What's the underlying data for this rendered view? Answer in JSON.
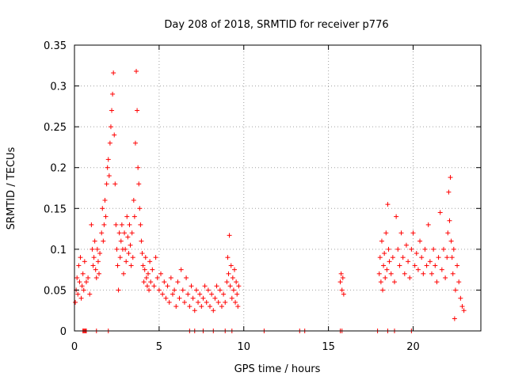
{
  "chart_data": {
    "type": "scatter",
    "title": "Day 208 of 2018, SRMTID for receiver p776",
    "xlabel": "GPS time / hours",
    "ylabel": "SRMTID / TECUs",
    "xlim": [
      0,
      24
    ],
    "ylim": [
      0,
      0.35
    ],
    "grid": true,
    "marker": "+",
    "series_color": "#ff0000",
    "x_ticks": [
      0,
      5,
      10,
      15,
      20
    ],
    "x_tick_labels": [
      "0",
      "5",
      "10",
      "15",
      "20"
    ],
    "y_ticks": [
      0,
      0.05,
      0.1,
      0.15,
      0.2,
      0.25,
      0.3,
      0.35
    ],
    "y_tick_labels": [
      "0",
      "0.05",
      "0.1",
      "0.15",
      "0.2",
      "0.25",
      "0.3",
      "0.35"
    ],
    "series": [
      {
        "name": "SRMTID",
        "points": [
          [
            0.05,
            0.035
          ],
          [
            0.1,
            0.05
          ],
          [
            0.15,
            0.065
          ],
          [
            0.2,
            0.045
          ],
          [
            0.25,
            0.08
          ],
          [
            0.3,
            0.06
          ],
          [
            0.35,
            0.09
          ],
          [
            0.4,
            0.04
          ],
          [
            0.45,
            0.055
          ],
          [
            0.5,
            0.07
          ],
          [
            0.55,
            0.05
          ],
          [
            0.6,
            0.085
          ],
          [
            0.7,
            0.06
          ],
          [
            0.8,
            0.065
          ],
          [
            0.9,
            0.045
          ],
          [
            1.0,
            0.13
          ],
          [
            1.05,
            0.1
          ],
          [
            1.1,
            0.08
          ],
          [
            1.15,
            0.09
          ],
          [
            1.2,
            0.11
          ],
          [
            1.25,
            0.075
          ],
          [
            1.3,
            0.065
          ],
          [
            1.35,
            0.1
          ],
          [
            1.4,
            0.085
          ],
          [
            1.45,
            0.07
          ],
          [
            1.5,
            0.095
          ],
          [
            1.6,
            0.12
          ],
          [
            1.65,
            0.15
          ],
          [
            1.7,
            0.11
          ],
          [
            1.75,
            0.13
          ],
          [
            1.8,
            0.16
          ],
          [
            1.85,
            0.14
          ],
          [
            1.9,
            0.18
          ],
          [
            1.95,
            0.2
          ],
          [
            2.0,
            0.21
          ],
          [
            2.05,
            0.19
          ],
          [
            2.1,
            0.23
          ],
          [
            2.15,
            0.25
          ],
          [
            2.2,
            0.27
          ],
          [
            2.25,
            0.29
          ],
          [
            2.3,
            0.316
          ],
          [
            2.35,
            0.24
          ],
          [
            2.4,
            0.18
          ],
          [
            2.45,
            0.13
          ],
          [
            2.5,
            0.1
          ],
          [
            2.55,
            0.08
          ],
          [
            2.6,
            0.05
          ],
          [
            2.65,
            0.12
          ],
          [
            2.7,
            0.09
          ],
          [
            2.75,
            0.11
          ],
          [
            2.8,
            0.13
          ],
          [
            2.85,
            0.1
          ],
          [
            2.9,
            0.07
          ],
          [
            2.95,
            0.12
          ],
          [
            3.0,
            0.1
          ],
          [
            3.05,
            0.085
          ],
          [
            3.1,
            0.14
          ],
          [
            3.15,
            0.115
          ],
          [
            3.2,
            0.095
          ],
          [
            3.25,
            0.13
          ],
          [
            3.3,
            0.105
          ],
          [
            3.35,
            0.08
          ],
          [
            3.4,
            0.12
          ],
          [
            3.45,
            0.09
          ],
          [
            3.5,
            0.16
          ],
          [
            3.55,
            0.14
          ],
          [
            3.6,
            0.23
          ],
          [
            3.65,
            0.318
          ],
          [
            3.7,
            0.27
          ],
          [
            3.75,
            0.2
          ],
          [
            3.8,
            0.18
          ],
          [
            3.85,
            0.15
          ],
          [
            3.9,
            0.13
          ],
          [
            3.95,
            0.11
          ],
          [
            4.0,
            0.095
          ],
          [
            4.05,
            0.08
          ],
          [
            4.1,
            0.06
          ],
          [
            4.15,
            0.075
          ],
          [
            4.2,
            0.09
          ],
          [
            4.25,
            0.065
          ],
          [
            4.3,
            0.055
          ],
          [
            4.35,
            0.07
          ],
          [
            4.4,
            0.05
          ],
          [
            4.45,
            0.085
          ],
          [
            4.5,
            0.06
          ],
          [
            4.6,
            0.075
          ],
          [
            4.7,
            0.055
          ],
          [
            4.8,
            0.09
          ],
          [
            4.9,
            0.065
          ],
          [
            5.0,
            0.05
          ],
          [
            5.1,
            0.07
          ],
          [
            5.2,
            0.045
          ],
          [
            5.3,
            0.06
          ],
          [
            5.4,
            0.04
          ],
          [
            5.5,
            0.055
          ],
          [
            5.6,
            0.035
          ],
          [
            5.7,
            0.065
          ],
          [
            5.8,
            0.045
          ],
          [
            5.9,
            0.05
          ],
          [
            6.0,
            0.03
          ],
          [
            6.1,
            0.06
          ],
          [
            6.2,
            0.04
          ],
          [
            6.3,
            0.075
          ],
          [
            6.4,
            0.05
          ],
          [
            6.5,
            0.035
          ],
          [
            6.6,
            0.065
          ],
          [
            6.7,
            0.045
          ],
          [
            6.8,
            0.03
          ],
          [
            6.9,
            0.055
          ],
          [
            7.0,
            0.04
          ],
          [
            7.1,
            0.025
          ],
          [
            7.2,
            0.05
          ],
          [
            7.3,
            0.035
          ],
          [
            7.4,
            0.045
          ],
          [
            7.5,
            0.03
          ],
          [
            7.6,
            0.04
          ],
          [
            7.7,
            0.055
          ],
          [
            7.8,
            0.035
          ],
          [
            7.9,
            0.05
          ],
          [
            8.0,
            0.03
          ],
          [
            8.1,
            0.045
          ],
          [
            8.2,
            0.025
          ],
          [
            8.3,
            0.04
          ],
          [
            8.4,
            0.055
          ],
          [
            8.5,
            0.035
          ],
          [
            8.6,
            0.05
          ],
          [
            8.7,
            0.03
          ],
          [
            8.8,
            0.045
          ],
          [
            8.9,
            0.035
          ],
          [
            9.0,
            0.06
          ],
          [
            9.05,
            0.09
          ],
          [
            9.1,
            0.07
          ],
          [
            9.15,
            0.117
          ],
          [
            9.2,
            0.055
          ],
          [
            9.25,
            0.08
          ],
          [
            9.3,
            0.04
          ],
          [
            9.35,
            0.065
          ],
          [
            9.4,
            0.05
          ],
          [
            9.45,
            0.075
          ],
          [
            9.5,
            0.035
          ],
          [
            9.55,
            0.06
          ],
          [
            9.6,
            0.045
          ],
          [
            9.65,
            0.03
          ],
          [
            9.7,
            0.055
          ],
          [
            15.7,
            0.06
          ],
          [
            15.75,
            0.07
          ],
          [
            15.8,
            0.05
          ],
          [
            15.85,
            0.065
          ],
          [
            15.9,
            0.045
          ],
          [
            18.0,
            0.07
          ],
          [
            18.05,
            0.09
          ],
          [
            18.1,
            0.06
          ],
          [
            18.15,
            0.11
          ],
          [
            18.2,
            0.05
          ],
          [
            18.25,
            0.08
          ],
          [
            18.3,
            0.095
          ],
          [
            18.35,
            0.065
          ],
          [
            18.4,
            0.12
          ],
          [
            18.45,
            0.075
          ],
          [
            18.5,
            0.155
          ],
          [
            18.55,
            0.1
          ],
          [
            18.6,
            0.085
          ],
          [
            18.7,
            0.07
          ],
          [
            18.8,
            0.09
          ],
          [
            18.9,
            0.06
          ],
          [
            19.0,
            0.14
          ],
          [
            19.1,
            0.1
          ],
          [
            19.2,
            0.08
          ],
          [
            19.3,
            0.12
          ],
          [
            19.4,
            0.09
          ],
          [
            19.5,
            0.07
          ],
          [
            19.6,
            0.105
          ],
          [
            19.7,
            0.085
          ],
          [
            19.8,
            0.065
          ],
          [
            19.9,
            0.1
          ],
          [
            20.0,
            0.12
          ],
          [
            20.1,
            0.08
          ],
          [
            20.2,
            0.095
          ],
          [
            20.3,
            0.075
          ],
          [
            20.4,
            0.11
          ],
          [
            20.5,
            0.09
          ],
          [
            20.6,
            0.07
          ],
          [
            20.7,
            0.1
          ],
          [
            20.8,
            0.08
          ],
          [
            20.9,
            0.13
          ],
          [
            21.0,
            0.085
          ],
          [
            21.1,
            0.07
          ],
          [
            21.2,
            0.1
          ],
          [
            21.3,
            0.08
          ],
          [
            21.4,
            0.06
          ],
          [
            21.5,
            0.09
          ],
          [
            21.6,
            0.145
          ],
          [
            21.7,
            0.075
          ],
          [
            21.8,
            0.1
          ],
          [
            21.9,
            0.065
          ],
          [
            22.0,
            0.09
          ],
          [
            22.05,
            0.12
          ],
          [
            22.1,
            0.17
          ],
          [
            22.15,
            0.135
          ],
          [
            22.2,
            0.188
          ],
          [
            22.25,
            0.11
          ],
          [
            22.3,
            0.09
          ],
          [
            22.35,
            0.07
          ],
          [
            22.4,
            0.1
          ],
          [
            22.45,
            0.015
          ],
          [
            22.5,
            0.05
          ],
          [
            22.6,
            0.08
          ],
          [
            22.7,
            0.06
          ],
          [
            22.8,
            0.04
          ],
          [
            22.9,
            0.03
          ],
          [
            23.0,
            0.025
          ]
        ],
        "zero_points_x": [
          0.5,
          0.55,
          0.6,
          0.65,
          0.7,
          1.3,
          2.0,
          6.8,
          7.1,
          7.6,
          8.2,
          8.9,
          9.3,
          11.2,
          13.3,
          13.6,
          15.7,
          15.8,
          17.9,
          18.5,
          18.9,
          19.9
        ]
      }
    ]
  }
}
